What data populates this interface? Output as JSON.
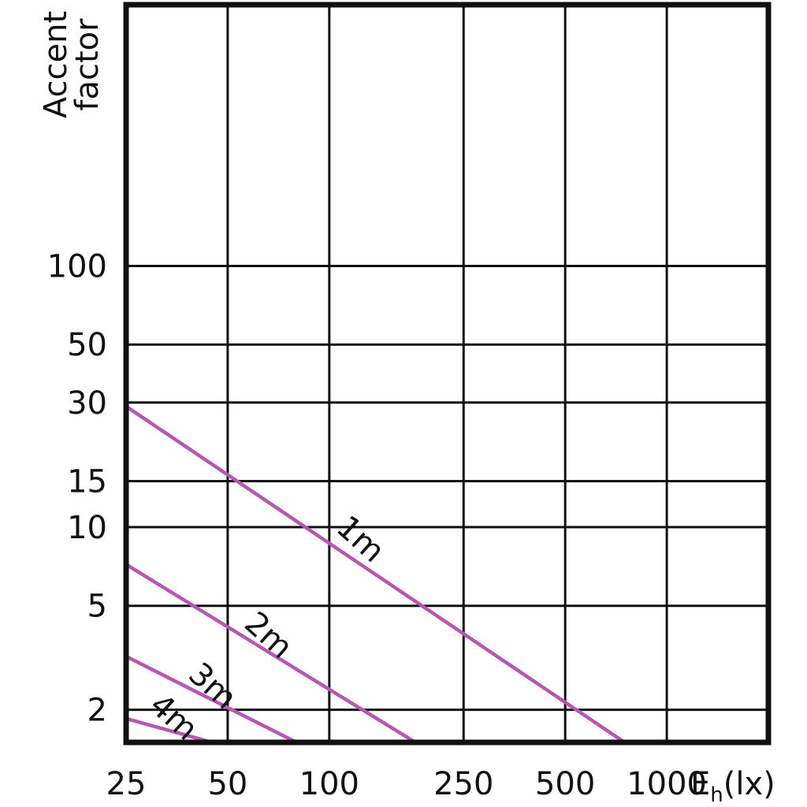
{
  "chart_data": {
    "type": "line",
    "ylabel_lines": [
      "Accent",
      "factor"
    ],
    "xlabel": {
      "main": "E",
      "sub": "h",
      "unit": "(lx)"
    },
    "x_scale": "log",
    "y_scale": "log",
    "xlim": [
      25,
      2000
    ],
    "ylim": [
      1.5,
      1000
    ],
    "x_ticks": [
      25,
      50,
      100,
      250,
      500,
      1000
    ],
    "x_tick_labels": [
      "25",
      "50",
      "100",
      "250",
      "500",
      "1000"
    ],
    "y_ticks": [
      2,
      5,
      10,
      15,
      30,
      50,
      100
    ],
    "y_tick_labels": [
      "2",
      "5",
      "10",
      "15",
      "30",
      "50",
      "100"
    ],
    "grid": true,
    "series": [
      {
        "name": "1m",
        "x": [
          25,
          750
        ],
        "y": [
          29,
          1.5
        ]
      },
      {
        "name": "2m",
        "x": [
          25,
          180
        ],
        "y": [
          7.2,
          1.5
        ]
      },
      {
        "name": "3m",
        "x": [
          25,
          80
        ],
        "y": [
          3.2,
          1.5
        ]
      },
      {
        "name": "4m",
        "x": [
          25,
          45
        ],
        "y": [
          1.85,
          1.5
        ]
      }
    ],
    "series_label_points": [
      {
        "name": "1m",
        "x": 118,
        "y": 8.4
      },
      {
        "name": "2m",
        "x": 63,
        "y": 3.6
      },
      {
        "name": "3m",
        "x": 43,
        "y": 2.3
      },
      {
        "name": "4m",
        "x": 33,
        "y": 1.75
      }
    ],
    "colors": {
      "series": "#b657b4",
      "grid": "#111111"
    }
  }
}
